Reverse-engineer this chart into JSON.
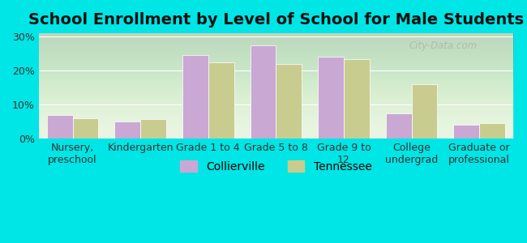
{
  "title": "School Enrollment by Level of School for Male Students",
  "categories": [
    "Nursery,\npreschool",
    "Kindergarten",
    "Grade 1 to 4",
    "Grade 5 to 8",
    "Grade 9 to\n12",
    "College\nundergrad",
    "Graduate or\nprofessional"
  ],
  "collierville": [
    7.0,
    5.0,
    24.5,
    27.5,
    24.0,
    7.5,
    4.0
  ],
  "tennessee": [
    6.0,
    5.8,
    22.5,
    22.0,
    23.5,
    16.0,
    4.5
  ],
  "collierville_color": "#c9a8d4",
  "tennessee_color": "#c9cc8f",
  "bar_edge_color": "#ffffff",
  "background_color": "#00e5e5",
  "ylim": [
    0,
    31
  ],
  "yticks": [
    0,
    10,
    20,
    30
  ],
  "ytick_labels": [
    "0%",
    "10%",
    "20%",
    "30%"
  ],
  "legend_labels": [
    "Collierville",
    "Tennessee"
  ],
  "title_fontsize": 14,
  "tick_fontsize": 9,
  "legend_fontsize": 10,
  "bar_width": 0.38,
  "watermark": "City-Data.com"
}
